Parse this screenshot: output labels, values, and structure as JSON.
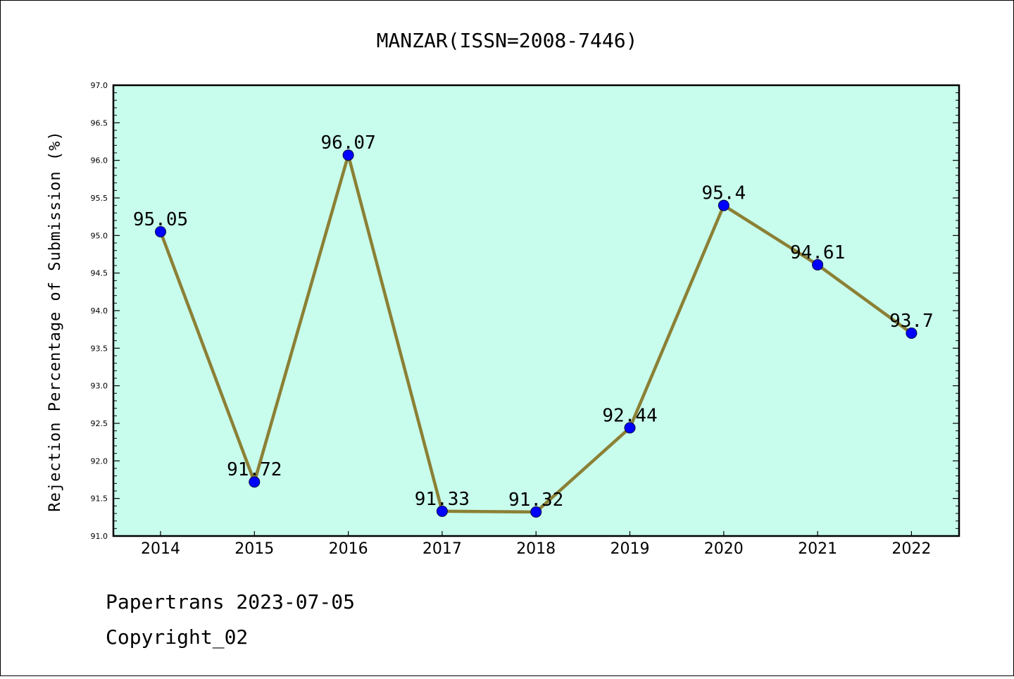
{
  "chart_data": {
    "type": "line",
    "title": "MANZAR(ISSN=2008-7446)",
    "xlabel": "",
    "ylabel": "Rejection Percentage of Submission (%)",
    "categories": [
      "2014",
      "2015",
      "2016",
      "2017",
      "2018",
      "2019",
      "2020",
      "2021",
      "2022"
    ],
    "series": [
      {
        "values": [
          95.05,
          91.72,
          96.07,
          91.33,
          91.32,
          92.44,
          95.4,
          94.61,
          93.7
        ],
        "labels": [
          "95.05",
          "91.72",
          "96.07",
          "91.33",
          "91.32",
          "92.44",
          "95.4",
          "94.61",
          "93.7"
        ]
      }
    ],
    "ylim": [
      91.0,
      97.0
    ],
    "yticks": [
      "91.0",
      "91.5",
      "92.0",
      "92.5",
      "93.0",
      "93.5",
      "94.0",
      "94.5",
      "95.0",
      "95.5",
      "96.0",
      "96.5",
      "97.0"
    ],
    "grid": false,
    "colors": {
      "plot_background": "#c8fcec",
      "line": "#8b8035",
      "marker": "#0000ff"
    }
  },
  "footer": {
    "line1": "Papertrans 2023-07-05",
    "line2": "Copyright_02"
  }
}
